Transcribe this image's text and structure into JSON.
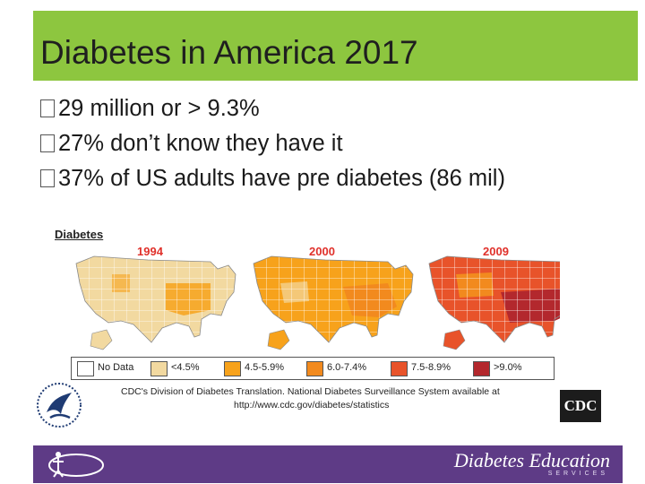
{
  "slide": {
    "title": "Diabetes in America 2017",
    "bullets": [
      "29 million or  > 9.3%",
      "27% don’t know they have it",
      "37% of US adults have pre diabetes (86 mil)"
    ]
  },
  "figure": {
    "heading": "Diabetes",
    "years": [
      "1994",
      "2000",
      "2009"
    ],
    "legend": [
      {
        "label": "No Data",
        "color": "#ffffff"
      },
      {
        "label": "<4.5%",
        "color": "#f2d9a0"
      },
      {
        "label": "4.5-5.9%",
        "color": "#f7a21b"
      },
      {
        "label": "6.0-7.4%",
        "color": "#f28a1e"
      },
      {
        "label": "7.5-8.9%",
        "color": "#e8532a"
      },
      {
        "label": ">9.0%",
        "color": "#b3282d"
      }
    ],
    "credit_line1": "CDC's Division of Diabetes Translation. National Diabetes Surveillance System available at",
    "credit_line2": "http://www.cdc.gov/diabetes/statistics"
  },
  "logos": {
    "cdc": "CDC",
    "footer_brand": "Diabetes Education",
    "footer_sub": "SERVICES"
  },
  "icons": {
    "hhs_seal": "hhs-eagle-icon",
    "footer_emblem": "person-circle-icon"
  }
}
